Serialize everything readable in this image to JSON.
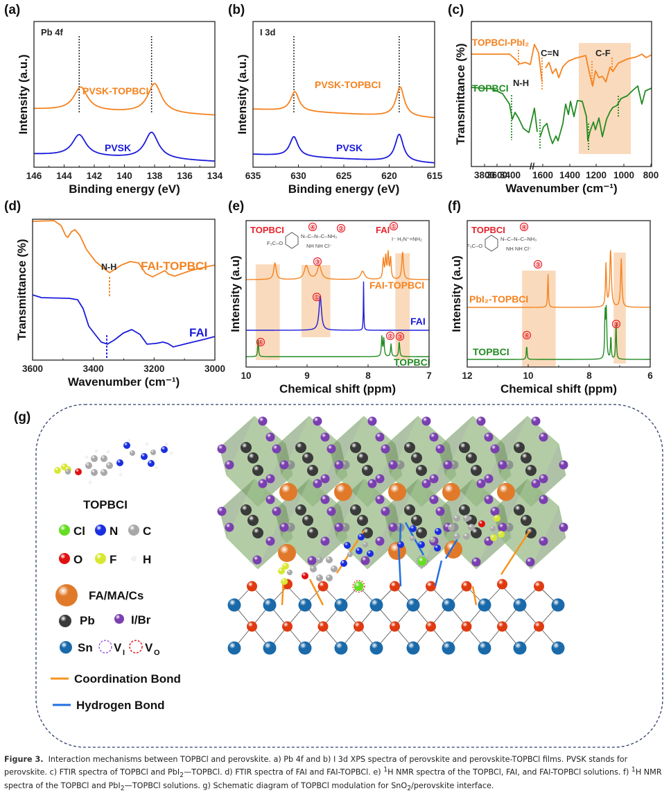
{
  "colors": {
    "orange": "#f5821f",
    "blue": "#1a1adb",
    "green": "#228b22",
    "red_label": "#e8202a",
    "highlight": "#f9d3b0",
    "coordination_bond": "#f7941d",
    "hydrogen_bond": "#1f6fe0",
    "dashed_border": "#2c3e66"
  },
  "chart_data": [
    {
      "id": "a",
      "panel_label": "(a)",
      "type": "line",
      "title": "Pb 4f",
      "xlabel": "Binding energy (eV)",
      "ylabel": "Intensity (a.u.)",
      "xlim": [
        146,
        134
      ],
      "x_reversed": true,
      "xticks": [
        "146",
        "144",
        "142",
        "140",
        "138",
        "136",
        "134"
      ],
      "reference_lines": [
        143.0,
        138.2
      ],
      "series": [
        {
          "name": "PVSK-TOPBCI",
          "color": "orange",
          "peaks": [
            {
              "x": 142.9,
              "height": 0.62
            },
            {
              "x": 138.0,
              "height": 0.78
            }
          ],
          "baseline": [
            0.0,
            -0.07
          ],
          "offset": 0.55
        },
        {
          "name": "PVSK",
          "color": "blue",
          "peaks": [
            {
              "x": 143.0,
              "height": 0.56
            },
            {
              "x": 138.2,
              "height": 0.7
            }
          ],
          "baseline": [
            0.0,
            -0.08
          ],
          "offset": 0.05
        }
      ]
    },
    {
      "id": "b",
      "panel_label": "(b)",
      "type": "line",
      "title": "I 3d",
      "xlabel": "Binding energy (eV)",
      "ylabel": "Intensity (a.u.)",
      "xlim": [
        635,
        615
      ],
      "x_reversed": true,
      "xticks": [
        "635",
        "630",
        "625",
        "620",
        "615"
      ],
      "reference_lines": [
        630.5,
        618.9
      ],
      "series": [
        {
          "name": "PVSK-TOPBCI",
          "color": "orange",
          "peaks": [
            {
              "x": 630.4,
              "height": 0.52
            },
            {
              "x": 618.8,
              "height": 0.78
            }
          ],
          "baseline": [
            0.0,
            -0.1
          ],
          "offset": 0.55
        },
        {
          "name": "PVSK",
          "color": "blue",
          "peaks": [
            {
              "x": 630.5,
              "height": 0.52
            },
            {
              "x": 618.9,
              "height": 0.72
            }
          ],
          "baseline": [
            0.0,
            -0.1
          ],
          "offset": 0.05
        }
      ]
    },
    {
      "id": "c",
      "panel_label": "(c)",
      "type": "line",
      "xlabel": "Wavenumber (cm⁻¹)",
      "ylabel": "Transmittance (%)",
      "xticks": [
        "3800",
        "3600",
        "3400",
        "1600",
        "1400",
        "1200",
        "1000",
        "800"
      ],
      "axis_break": "between 3400 and 1600",
      "annotations": [
        "N-H",
        "C=N",
        "C-F"
      ],
      "highlight_range": [
        1350,
        950
      ],
      "series": [
        {
          "name": "TOPBCI-PbI₂",
          "color": "orange"
        },
        {
          "name": "TOPBCI",
          "color": "green"
        }
      ]
    },
    {
      "id": "d",
      "panel_label": "(d)",
      "type": "line",
      "xlabel": "Wavenumber (cm⁻¹)",
      "ylabel": "Transmittance (%)",
      "xlim": [
        3600,
        3000
      ],
      "x_reversed": true,
      "xticks": [
        "3600",
        "3400",
        "3200",
        "3000"
      ],
      "annotations": [
        "N-H"
      ],
      "reference_lines": [
        3345,
        3355
      ],
      "series": [
        {
          "name": "FAI-TOPBCI",
          "color": "orange"
        },
        {
          "name": "FAI",
          "color": "blue"
        }
      ]
    },
    {
      "id": "e",
      "panel_label": "(e)",
      "type": "line",
      "xlabel": "Chemical shift (ppm)",
      "ylabel": "Intensity (a.u)",
      "xlim": [
        10.3,
        6.5
      ],
      "x_reversed": true,
      "xticks": [
        "10",
        "9",
        "8",
        "7"
      ],
      "highlight_ranges": [
        [
          10.1,
          9.6
        ],
        [
          9.15,
          8.55
        ],
        [
          7.2,
          6.9
        ]
      ],
      "structure_labels": {
        "topbcl": "TOPBCI",
        "fai": "FAI"
      },
      "series": [
        {
          "name": "FAI-TOPBCI",
          "color": "orange",
          "peaks": [
            9.7,
            9.05,
            8.78,
            7.88,
            7.45,
            7.4,
            7.35,
            7.3,
            7.05
          ]
        },
        {
          "name": "FAI",
          "color": "blue",
          "peaks": [
            8.76,
            7.86
          ]
        },
        {
          "name": "TOPBCI",
          "color": "green",
          "peaks": [
            10.05,
            7.48,
            7.44,
            7.29,
            7.12
          ]
        }
      ],
      "markers": [
        "④",
        "②",
        "③",
        "①"
      ]
    },
    {
      "id": "f",
      "panel_label": "(f)",
      "type": "line",
      "xlabel": "Chemical shift (ppm)",
      "ylabel": "Intensity (a.u)",
      "xlim": [
        12,
        6
      ],
      "x_reversed": true,
      "xticks": [
        "12",
        "10",
        "8",
        "6"
      ],
      "highlight_ranges": [
        [
          10.2,
          9.1
        ],
        [
          7.2,
          6.8
        ]
      ],
      "structure_labels": {
        "topbcl": "TOPBCI"
      },
      "series": [
        {
          "name": "PbI₂-TOPBCI",
          "color": "orange",
          "peaks": [
            9.35,
            7.45,
            7.3,
            6.95
          ]
        },
        {
          "name": "TOPBCI",
          "color": "green",
          "peaks": [
            10.05,
            7.48,
            7.44,
            7.29,
            7.12
          ]
        }
      ],
      "markers": [
        "④",
        "③"
      ]
    }
  ],
  "schematic": {
    "panel_label": "(g)",
    "molecule_label": "TOPBCI",
    "legend": {
      "atoms": [
        {
          "symbol": "Cl",
          "color": "#66dd22"
        },
        {
          "symbol": "N",
          "color": "#1a2ee0"
        },
        {
          "symbol": "C",
          "color": "#a8a8a8"
        },
        {
          "symbol": "O",
          "color": "#e01010"
        },
        {
          "symbol": "F",
          "color": "#d8e830"
        },
        {
          "symbol": "H",
          "color": "#f4f4f4"
        }
      ],
      "species": [
        {
          "label": "FA/MA/Cs",
          "color": "#e07a2a"
        },
        {
          "label": "Pb",
          "color": "#3a3a3a"
        },
        {
          "label": "I/Br",
          "color": "#7a3fb0"
        },
        {
          "label": "Sn",
          "color": "#1a6aaa"
        },
        {
          "label": "V",
          "sub": "I",
          "color": "#a060d8",
          "style": "dashed-ring"
        },
        {
          "label": "V",
          "sub": "O",
          "color": "#e02020",
          "style": "dashed-ring"
        }
      ],
      "bonds": [
        {
          "label": "Coordination Bond",
          "color": "#f7941d"
        },
        {
          "label": "Hydrogen Bond",
          "color": "#1f6fe0"
        }
      ]
    }
  },
  "caption": {
    "figure_label": "Figure 3.",
    "text_1": "Interaction mechanisms between TOPBCl and perovskite. a) Pb 4f and b) I 3d XPS spectra of perovskite and perovskite-TOPBCl films. PVSK stands for perovskite. c) FTIR spectra of TOPBCl and PbI",
    "text_2": "—TOPBCl. d) FTIR spectra of FAI and FAI-TOPBCl. e) ",
    "text_3": "H NMR spectra of the TOPBCl, FAI, and FAI-TOPBCl solutions. f) ",
    "text_4": "H NMR spectra of the TOPBCl and PbI",
    "text_5": "—TOPBCl solutions. g) Schematic diagram of TOPBCl modulation for SnO",
    "text_6": "/perovskite interface.",
    "sub_2": "2",
    "sup_1": "1"
  }
}
